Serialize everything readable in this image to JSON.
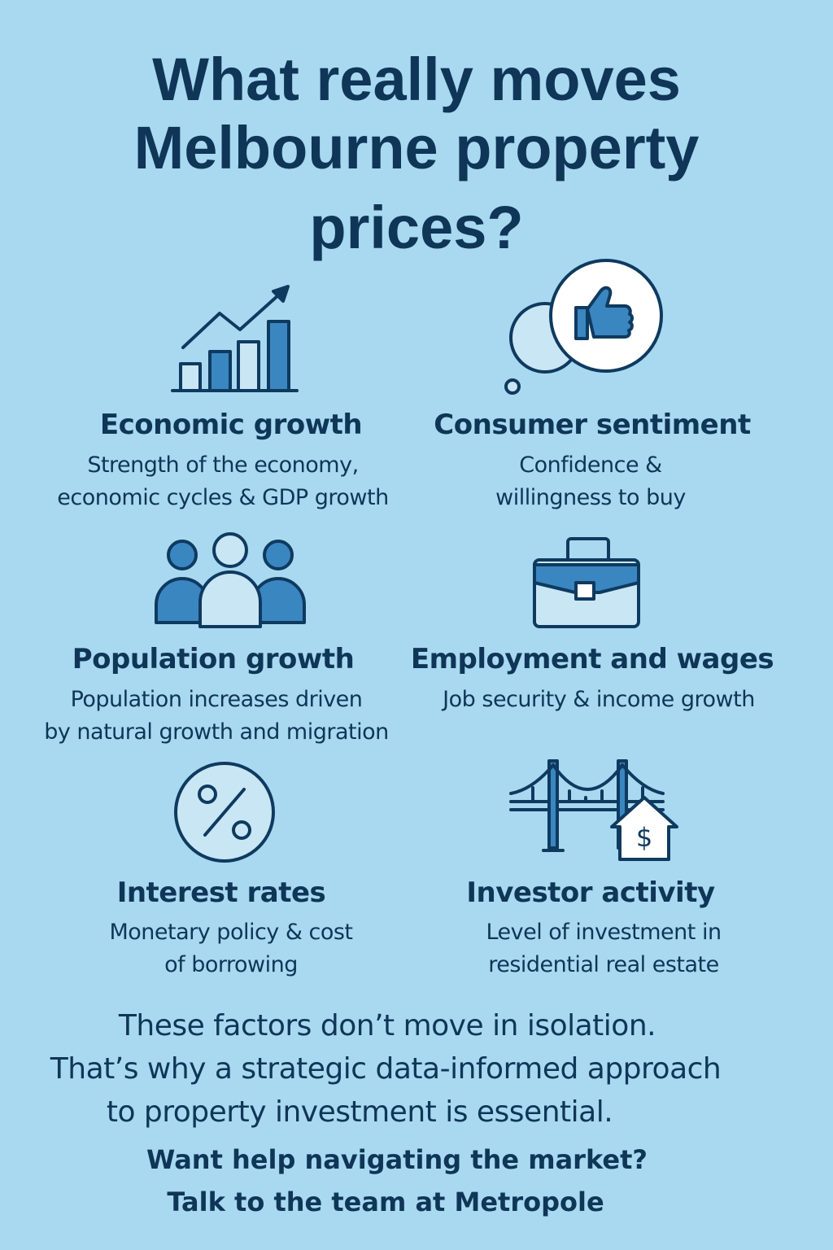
{
  "title": [
    "What really moves",
    "Melbourne property",
    "prices?"
  ],
  "factors": [
    {
      "heading": "Economic growth",
      "description": [
        "Strength of the economy,",
        "economic cycles & GDP growth"
      ]
    },
    {
      "heading": "Consumer sentiment",
      "description": [
        "Confidence &",
        "willingness to buy"
      ]
    },
    {
      "heading": "Population growth",
      "description": [
        "Population increases driven",
        "by natural growth and migration"
      ]
    },
    {
      "heading": "Employment and wages",
      "description": [
        "Job security & income growth"
      ]
    },
    {
      "heading": "Interest rates",
      "description": [
        "Monetary policy & cost",
        "of borrowing"
      ]
    },
    {
      "heading": "Investor activity",
      "description": [
        "Level of investment in",
        "residential real estate"
      ]
    }
  ],
  "closing": [
    "These factors don’t move in isolation.",
    "That’s why a strategic data-informed approach",
    "to property investment is essential."
  ],
  "cta": [
    "Want help navigating the market?",
    "Talk to the team at Metropole"
  ]
}
